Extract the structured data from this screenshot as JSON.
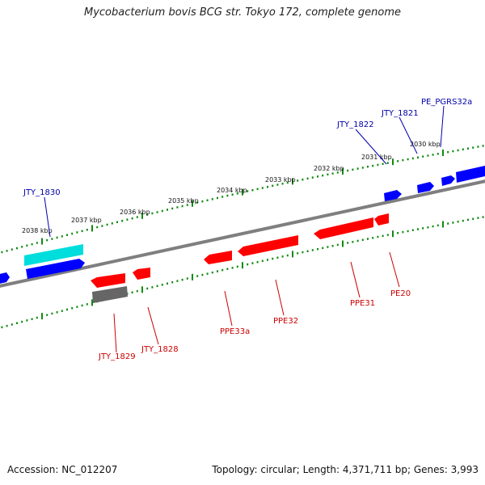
{
  "header": {
    "title": "Mycobacterium bovis BCG str. Tokyo 172, complete genome"
  },
  "footer": {
    "accession": "Accession: NC_012207",
    "summary": "Topology: circular; Length: 4,371,711 bp; Genes: 3,993"
  },
  "colors": {
    "forward_strand": "#0000ff",
    "reverse_strand": "#ff0000",
    "highlight_cyan": "#00ffff",
    "pseudo_gray": "#666666",
    "tick_green": "#0f8a0f",
    "backbone": "#7f7f7f"
  },
  "scale_ticks": [
    "2038 kbp",
    "2037 kbp",
    "2036 kbp",
    "2035 kbp",
    "2034 kbp",
    "2033 kbp",
    "2032 kbp",
    "2031 kbp",
    "2030 kbp"
  ],
  "forward_genes": [
    {
      "label": "JTY_1830",
      "color": "#0000ff"
    },
    {
      "label": "JTY_1822",
      "color": "#0000ff"
    },
    {
      "label": "JTY_1821",
      "color": "#0000ff"
    },
    {
      "label": "PE_PGRS32a",
      "color": "#0000ff"
    }
  ],
  "reverse_genes": [
    {
      "label": "JTY_1829",
      "color": "#ff0000"
    },
    {
      "label": "JTY_1828",
      "color": "#ff0000"
    },
    {
      "label": "PPE33a",
      "color": "#ff0000"
    },
    {
      "label": "PPE32",
      "color": "#ff0000"
    },
    {
      "label": "PPE31",
      "color": "#ff0000"
    },
    {
      "label": "PE20",
      "color": "#ff0000"
    }
  ]
}
